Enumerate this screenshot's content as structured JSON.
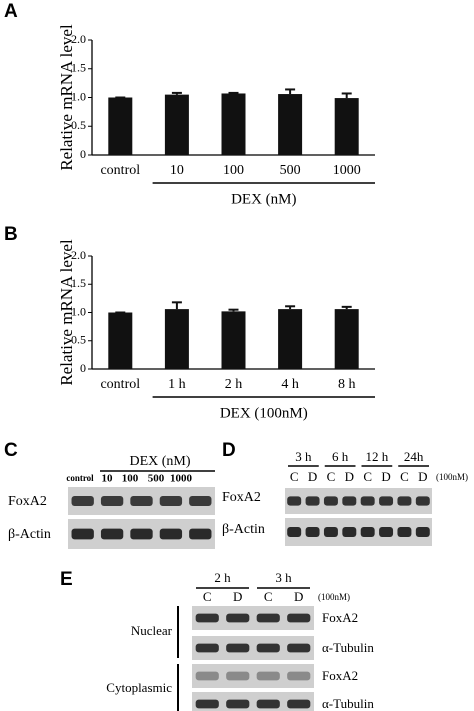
{
  "chart_data": [
    {
      "type": "bar",
      "panel_label": "A",
      "y_label": "Relative mRNA level",
      "categories": [
        "control",
        "10",
        "100",
        "500",
        "1000"
      ],
      "values": [
        1.0,
        1.05,
        1.07,
        1.06,
        0.99
      ],
      "errors": [
        0,
        0.03,
        0.01,
        0.08,
        0.08
      ],
      "color": "#111111",
      "x_group_label": "DEX (nM)",
      "ylim": [
        0,
        2.0
      ],
      "yticks": [
        0,
        0.5,
        {
          "value": 1.0,
          "label": "1.0"
        },
        1.5,
        {
          "value": 2.0,
          "label": "2.0"
        }
      ]
    },
    {
      "type": "bar",
      "panel_label": "B",
      "y_label": "Relative mRNA level",
      "categories": [
        "control",
        "1 h",
        "2 h",
        "4 h",
        "8 h"
      ],
      "values": [
        1.0,
        1.06,
        1.02,
        1.06,
        1.06
      ],
      "errors": [
        0,
        0.12,
        0.03,
        0.05,
        0.04
      ],
      "color": "#111111",
      "x_group_label": "DEX (100nM)",
      "ylim": [
        0,
        2.0
      ],
      "yticks": [
        0,
        0.5,
        {
          "value": 1.0,
          "label": "1.0"
        },
        1.5,
        {
          "value": 2.0,
          "label": "2.0"
        }
      ]
    }
  ],
  "blots": {
    "C": {
      "panel_label": "C",
      "title": "DEX (nM)",
      "lanes": [
        "control",
        "10",
        "100",
        "500",
        "1000"
      ],
      "rows": [
        "FoxA2",
        "β-Actin"
      ]
    },
    "D": {
      "panel_label": "D",
      "times": [
        "3 h",
        "6 h",
        "12 h",
        "24h"
      ],
      "lanes": [
        "C",
        "D",
        "C",
        "D",
        "C",
        "D",
        "C",
        "D"
      ],
      "note": "(100nM)",
      "rows": [
        "FoxA2",
        "β-Actin"
      ]
    },
    "E": {
      "panel_label": "E",
      "times": [
        "2 h",
        "3 h"
      ],
      "lanes": [
        "C",
        "D",
        "C",
        "D"
      ],
      "note": "(100nM)",
      "fractions": [
        {
          "name": "Nuclear",
          "rows": [
            "FoxA2",
            "α-Tubulin"
          ]
        },
        {
          "name": "Cytoplasmic",
          "rows": [
            "FoxA2",
            "α-Tubulin"
          ]
        }
      ]
    }
  }
}
